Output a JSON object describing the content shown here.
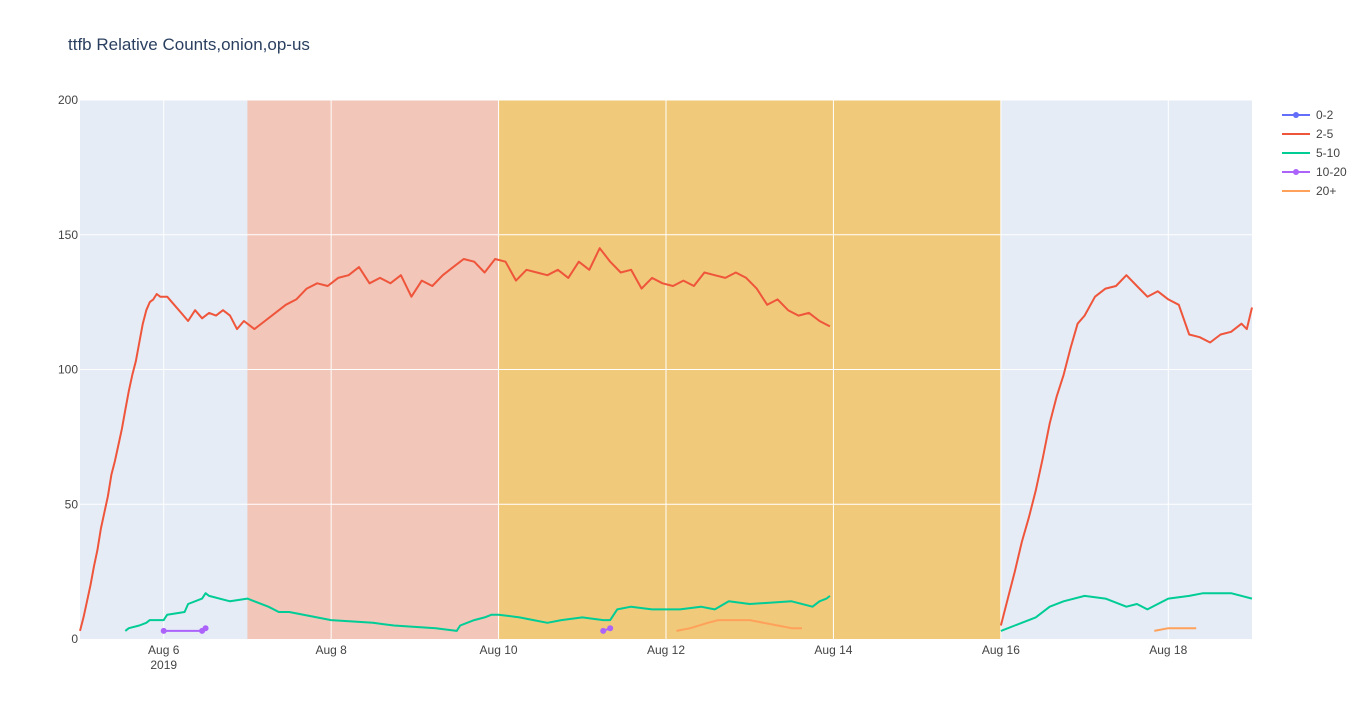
{
  "chart_data": {
    "type": "line",
    "title": "ttfb Relative Counts,onion,op-us",
    "xlabel": "",
    "ylabel": "",
    "x_range": [
      "2019-08-05",
      "2019-08-19"
    ],
    "ylim": [
      0,
      200
    ],
    "x_ticks": [
      {
        "date": "2019-08-06",
        "label": "Aug 6",
        "sublabel": "2019"
      },
      {
        "date": "2019-08-08",
        "label": "Aug 8",
        "sublabel": ""
      },
      {
        "date": "2019-08-10",
        "label": "Aug 10",
        "sublabel": ""
      },
      {
        "date": "2019-08-12",
        "label": "Aug 12",
        "sublabel": ""
      },
      {
        "date": "2019-08-14",
        "label": "Aug 14",
        "sublabel": ""
      },
      {
        "date": "2019-08-16",
        "label": "Aug 16",
        "sublabel": ""
      },
      {
        "date": "2019-08-18",
        "label": "Aug 18",
        "sublabel": ""
      }
    ],
    "y_ticks": [
      0,
      50,
      100,
      150,
      200
    ],
    "grid": true,
    "legend_position": "top-right",
    "plot_background": "#e5ecf6",
    "shaded_regions": [
      {
        "start": "2019-08-07",
        "end": "2019-08-10",
        "color": "#f2c6b9"
      },
      {
        "start": "2019-08-10",
        "end": "2019-08-16",
        "color": "#f0c97a"
      }
    ],
    "series": [
      {
        "name": "0-2",
        "color": "#636efa",
        "mode": "lines+markers",
        "segments": []
      },
      {
        "name": "2-5",
        "color": "#ef553b",
        "mode": "lines",
        "segments": [
          [
            [
              "2019-08-05T00:00",
              3
            ],
            [
              "2019-08-05T01:00",
              8
            ],
            [
              "2019-08-05T02:00",
              14
            ],
            [
              "2019-08-05T03:00",
              20
            ],
            [
              "2019-08-05T04:00",
              27
            ],
            [
              "2019-08-05T05:00",
              33
            ],
            [
              "2019-08-05T06:00",
              41
            ],
            [
              "2019-08-05T07:00",
              47
            ],
            [
              "2019-08-05T08:00",
              53
            ],
            [
              "2019-08-05T09:00",
              61
            ],
            [
              "2019-08-05T10:00",
              66
            ],
            [
              "2019-08-05T11:00",
              72
            ],
            [
              "2019-08-05T12:00",
              78
            ],
            [
              "2019-08-05T13:00",
              85
            ],
            [
              "2019-08-05T14:00",
              92
            ],
            [
              "2019-08-05T15:00",
              98
            ],
            [
              "2019-08-05T16:00",
              103
            ],
            [
              "2019-08-05T17:00",
              110
            ],
            [
              "2019-08-05T18:00",
              117
            ],
            [
              "2019-08-05T19:00",
              122
            ],
            [
              "2019-08-05T20:00",
              125
            ],
            [
              "2019-08-05T21:00",
              126
            ],
            [
              "2019-08-05T22:00",
              128
            ],
            [
              "2019-08-05T23:00",
              127
            ],
            [
              "2019-08-06T01:00",
              127
            ],
            [
              "2019-08-06T03:00",
              124
            ],
            [
              "2019-08-06T05:00",
              121
            ],
            [
              "2019-08-06T07:00",
              118
            ],
            [
              "2019-08-06T09:00",
              122
            ],
            [
              "2019-08-06T11:00",
              119
            ],
            [
              "2019-08-06T13:00",
              121
            ],
            [
              "2019-08-06T15:00",
              120
            ],
            [
              "2019-08-06T17:00",
              122
            ],
            [
              "2019-08-06T19:00",
              120
            ],
            [
              "2019-08-06T21:00",
              115
            ],
            [
              "2019-08-06T23:00",
              118
            ],
            [
              "2019-08-07T02:00",
              115
            ],
            [
              "2019-08-07T05:00",
              118
            ],
            [
              "2019-08-07T08:00",
              121
            ],
            [
              "2019-08-07T11:00",
              124
            ],
            [
              "2019-08-07T14:00",
              126
            ],
            [
              "2019-08-07T17:00",
              130
            ],
            [
              "2019-08-07T20:00",
              132
            ],
            [
              "2019-08-07T23:00",
              131
            ],
            [
              "2019-08-08T02:00",
              134
            ],
            [
              "2019-08-08T05:00",
              135
            ],
            [
              "2019-08-08T08:00",
              138
            ],
            [
              "2019-08-08T11:00",
              132
            ],
            [
              "2019-08-08T14:00",
              134
            ],
            [
              "2019-08-08T17:00",
              132
            ],
            [
              "2019-08-08T20:00",
              135
            ],
            [
              "2019-08-08T23:00",
              127
            ],
            [
              "2019-08-09T02:00",
              133
            ],
            [
              "2019-08-09T05:00",
              131
            ],
            [
              "2019-08-09T08:00",
              135
            ],
            [
              "2019-08-09T11:00",
              138
            ],
            [
              "2019-08-09T14:00",
              141
            ],
            [
              "2019-08-09T17:00",
              140
            ],
            [
              "2019-08-09T20:00",
              136
            ],
            [
              "2019-08-09T23:00",
              141
            ],
            [
              "2019-08-10T02:00",
              140
            ],
            [
              "2019-08-10T05:00",
              133
            ],
            [
              "2019-08-10T08:00",
              137
            ],
            [
              "2019-08-10T11:00",
              136
            ],
            [
              "2019-08-10T14:00",
              135
            ],
            [
              "2019-08-10T17:00",
              137
            ],
            [
              "2019-08-10T20:00",
              134
            ],
            [
              "2019-08-10T23:00",
              140
            ],
            [
              "2019-08-11T02:00",
              137
            ],
            [
              "2019-08-11T05:00",
              145
            ],
            [
              "2019-08-11T08:00",
              140
            ],
            [
              "2019-08-11T11:00",
              136
            ],
            [
              "2019-08-11T14:00",
              137
            ],
            [
              "2019-08-11T17:00",
              130
            ],
            [
              "2019-08-11T20:00",
              134
            ],
            [
              "2019-08-11T23:00",
              132
            ],
            [
              "2019-08-12T02:00",
              131
            ],
            [
              "2019-08-12T05:00",
              133
            ],
            [
              "2019-08-12T08:00",
              131
            ],
            [
              "2019-08-12T11:00",
              136
            ],
            [
              "2019-08-12T14:00",
              135
            ],
            [
              "2019-08-12T17:00",
              134
            ],
            [
              "2019-08-12T20:00",
              136
            ],
            [
              "2019-08-12T23:00",
              134
            ],
            [
              "2019-08-13T02:00",
              130
            ],
            [
              "2019-08-13T05:00",
              124
            ],
            [
              "2019-08-13T08:00",
              126
            ],
            [
              "2019-08-13T11:00",
              122
            ],
            [
              "2019-08-13T14:00",
              120
            ],
            [
              "2019-08-13T17:00",
              121
            ],
            [
              "2019-08-13T20:00",
              118
            ],
            [
              "2019-08-13T23:00",
              116
            ]
          ],
          [
            [
              "2019-08-16T00:00",
              5
            ],
            [
              "2019-08-16T02:00",
              15
            ],
            [
              "2019-08-16T04:00",
              25
            ],
            [
              "2019-08-16T06:00",
              36
            ],
            [
              "2019-08-16T08:00",
              45
            ],
            [
              "2019-08-16T10:00",
              55
            ],
            [
              "2019-08-16T12:00",
              67
            ],
            [
              "2019-08-16T14:00",
              80
            ],
            [
              "2019-08-16T16:00",
              90
            ],
            [
              "2019-08-16T18:00",
              98
            ],
            [
              "2019-08-16T20:00",
              108
            ],
            [
              "2019-08-16T22:00",
              117
            ],
            [
              "2019-08-17T00:00",
              120
            ],
            [
              "2019-08-17T03:00",
              127
            ],
            [
              "2019-08-17T06:00",
              130
            ],
            [
              "2019-08-17T09:00",
              131
            ],
            [
              "2019-08-17T12:00",
              135
            ],
            [
              "2019-08-17T15:00",
              131
            ],
            [
              "2019-08-17T18:00",
              127
            ],
            [
              "2019-08-17T21:00",
              129
            ],
            [
              "2019-08-18T00:00",
              126
            ],
            [
              "2019-08-18T03:00",
              124
            ],
            [
              "2019-08-18T06:00",
              113
            ],
            [
              "2019-08-18T09:00",
              112
            ],
            [
              "2019-08-18T12:00",
              110
            ],
            [
              "2019-08-18T15:00",
              113
            ],
            [
              "2019-08-18T18:00",
              114
            ],
            [
              "2019-08-18T21:00",
              117
            ],
            [
              "2019-08-18T22:30",
              115
            ],
            [
              "2019-08-19T00:00",
              123
            ]
          ]
        ]
      },
      {
        "name": "5-10",
        "color": "#00cc96",
        "mode": "lines",
        "segments": [
          [
            [
              "2019-08-05T13:00",
              3
            ],
            [
              "2019-08-05T14:00",
              4
            ],
            [
              "2019-08-05T17:00",
              5
            ],
            [
              "2019-08-05T19:00",
              6
            ],
            [
              "2019-08-05T20:00",
              7
            ],
            [
              "2019-08-06T00:00",
              7
            ],
            [
              "2019-08-06T01:00",
              9
            ],
            [
              "2019-08-06T06:00",
              10
            ],
            [
              "2019-08-06T07:00",
              13
            ],
            [
              "2019-08-06T11:00",
              15
            ],
            [
              "2019-08-06T12:00",
              17
            ],
            [
              "2019-08-06T13:00",
              16
            ],
            [
              "2019-08-06T19:00",
              14
            ],
            [
              "2019-08-07T00:00",
              15
            ],
            [
              "2019-08-07T02:00",
              14
            ],
            [
              "2019-08-07T06:00",
              12
            ],
            [
              "2019-08-07T09:00",
              10
            ],
            [
              "2019-08-07T12:00",
              10
            ],
            [
              "2019-08-08T00:00",
              7
            ],
            [
              "2019-08-08T12:00",
              6
            ],
            [
              "2019-08-08T18:00",
              5
            ],
            [
              "2019-08-09T06:00",
              4
            ],
            [
              "2019-08-09T12:00",
              3
            ],
            [
              "2019-08-09T13:00",
              5
            ],
            [
              "2019-08-09T17:00",
              7
            ],
            [
              "2019-08-09T20:00",
              8
            ],
            [
              "2019-08-09T22:00",
              9
            ],
            [
              "2019-08-10T00:00",
              9
            ],
            [
              "2019-08-10T06:00",
              8
            ],
            [
              "2019-08-10T10:00",
              7
            ],
            [
              "2019-08-10T14:00",
              6
            ],
            [
              "2019-08-10T18:00",
              7
            ],
            [
              "2019-08-11T00:00",
              8
            ],
            [
              "2019-08-11T06:00",
              7
            ],
            [
              "2019-08-11T08:00",
              7
            ],
            [
              "2019-08-11T10:00",
              11
            ],
            [
              "2019-08-11T14:00",
              12
            ],
            [
              "2019-08-11T20:00",
              11
            ],
            [
              "2019-08-12T04:00",
              11
            ],
            [
              "2019-08-12T10:00",
              12
            ],
            [
              "2019-08-12T14:00",
              11
            ],
            [
              "2019-08-12T18:00",
              14
            ],
            [
              "2019-08-13T00:00",
              13
            ],
            [
              "2019-08-13T12:00",
              14
            ],
            [
              "2019-08-13T18:00",
              12
            ],
            [
              "2019-08-13T20:00",
              14
            ],
            [
              "2019-08-13T22:00",
              15
            ],
            [
              "2019-08-13T23:00",
              16
            ]
          ],
          [
            [
              "2019-08-16T00:00",
              3
            ],
            [
              "2019-08-16T04:00",
              5
            ],
            [
              "2019-08-16T10:00",
              8
            ],
            [
              "2019-08-16T14:00",
              12
            ],
            [
              "2019-08-16T18:00",
              14
            ],
            [
              "2019-08-17T00:00",
              16
            ],
            [
              "2019-08-17T06:00",
              15
            ],
            [
              "2019-08-17T12:00",
              12
            ],
            [
              "2019-08-17T15:00",
              13
            ],
            [
              "2019-08-17T18:00",
              11
            ],
            [
              "2019-08-17T21:00",
              13
            ],
            [
              "2019-08-18T00:00",
              15
            ],
            [
              "2019-08-18T06:00",
              16
            ],
            [
              "2019-08-18T10:00",
              17
            ],
            [
              "2019-08-18T14:00",
              17
            ],
            [
              "2019-08-18T18:00",
              17
            ],
            [
              "2019-08-19T00:00",
              15
            ]
          ]
        ]
      },
      {
        "name": "10-20",
        "color": "#ab63fa",
        "mode": "lines+markers",
        "segments": [
          [
            [
              "2019-08-06T00:00",
              3
            ],
            [
              "2019-08-06T11:00",
              3
            ],
            [
              "2019-08-06T12:00",
              4
            ]
          ],
          [
            [
              "2019-08-11T06:00",
              3
            ],
            [
              "2019-08-11T08:00",
              4
            ]
          ]
        ]
      },
      {
        "name": "20+",
        "color": "#ffa15a",
        "mode": "lines",
        "segments": [
          [
            [
              "2019-08-12T03:00",
              3
            ],
            [
              "2019-08-12T07:00",
              4
            ],
            [
              "2019-08-12T12:00",
              6
            ],
            [
              "2019-08-12T15:00",
              7
            ],
            [
              "2019-08-13T00:00",
              7
            ],
            [
              "2019-08-13T08:00",
              5
            ],
            [
              "2019-08-13T12:00",
              4
            ],
            [
              "2019-08-13T15:00",
              4
            ]
          ],
          [
            [
              "2019-08-17T20:00",
              3
            ],
            [
              "2019-08-18T00:00",
              4
            ],
            [
              "2019-08-18T08:00",
              4
            ]
          ]
        ]
      }
    ]
  }
}
